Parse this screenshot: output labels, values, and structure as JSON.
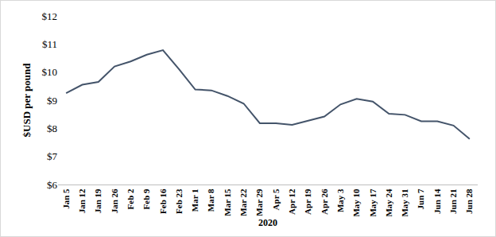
{
  "chart_data": {
    "type": "line",
    "categories": [
      "Jan 5",
      "Jan 12",
      "Jan 19",
      "Jan 26",
      "Feb 2",
      "Feb 9",
      "Feb 16",
      "Feb 23",
      "Mar 1",
      "Mar 8",
      "Mar 15",
      "Mar 22",
      "Mar 29",
      "Apr 5",
      "Apr 12",
      "Apr 19",
      "Apr 26",
      "May 3",
      "May 10",
      "May 17",
      "May 24",
      "May 31",
      "Jun 7",
      "Jun 14",
      "Jun 21",
      "Jun 28"
    ],
    "values": [
      9.25,
      9.55,
      9.65,
      10.2,
      10.38,
      10.62,
      10.78,
      10.1,
      9.38,
      9.35,
      9.15,
      8.88,
      8.18,
      8.18,
      8.12,
      8.28,
      8.42,
      8.85,
      9.05,
      8.95,
      8.52,
      8.48,
      8.25,
      8.25,
      8.1,
      7.62
    ],
    "color": "#44546a",
    "x_label": "2020",
    "y_label": "$USD per pound",
    "ylim": [
      6,
      12
    ],
    "yticks": [
      {
        "value": 6,
        "label": "$6"
      },
      {
        "value": 7,
        "label": "$7"
      },
      {
        "value": 8,
        "label": "$8"
      },
      {
        "value": 9,
        "label": "$9"
      },
      {
        "value": 10,
        "label": "$10"
      },
      {
        "value": 11,
        "label": "$11"
      },
      {
        "value": 12,
        "label": "$12"
      }
    ],
    "grid": false
  }
}
